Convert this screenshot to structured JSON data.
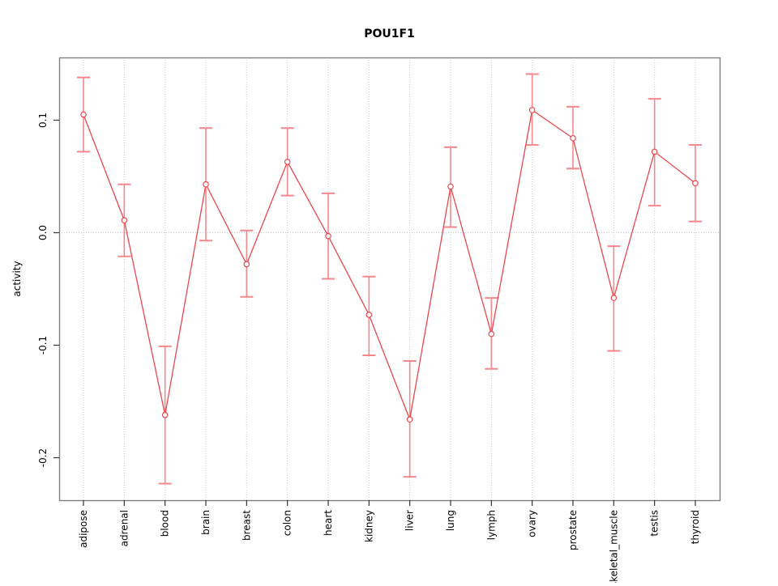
{
  "title": "POU1F1",
  "colors": {
    "series_line": "#e9474e",
    "error_bar": "#f5878c",
    "marker_stroke": "#e9474e",
    "marker_fill": "#ffffff",
    "frame": "#7f7f7f",
    "gridline": "#c9c9c9",
    "tick": "#333333",
    "text": "#000000",
    "background": "#ffffff"
  },
  "chart_data": {
    "type": "line",
    "title": "POU1F1",
    "xlabel": "",
    "ylabel": "activity",
    "legend_position": "none",
    "grid": "dotted vertical gridline per category; dotted horizontal line at y=0",
    "marker": "open-circle",
    "error_bars": true,
    "categories": [
      "adipose",
      "adrenal",
      "blood",
      "brain",
      "breast",
      "colon",
      "heart",
      "kidney",
      "liver",
      "lung",
      "lymph",
      "ovary",
      "prostate",
      "skeletal_muscle",
      "testis",
      "thyroid"
    ],
    "series": [
      {
        "name": "activity",
        "values": [
          0.105,
          0.011,
          -0.162,
          0.043,
          -0.028,
          0.063,
          -0.003,
          -0.073,
          -0.166,
          0.041,
          -0.09,
          0.109,
          0.084,
          -0.058,
          0.072,
          0.044
        ],
        "error_low": [
          0.072,
          -0.021,
          -0.223,
          -0.007,
          -0.057,
          0.033,
          -0.041,
          -0.109,
          -0.217,
          0.005,
          -0.121,
          0.078,
          0.057,
          -0.105,
          0.024,
          0.01
        ],
        "error_high": [
          0.138,
          0.043,
          -0.101,
          0.093,
          0.002,
          0.093,
          0.035,
          -0.039,
          -0.114,
          0.076,
          -0.058,
          0.141,
          0.112,
          -0.012,
          0.119,
          0.078
        ]
      }
    ],
    "yticks": [
      0.1,
      0.0,
      -0.1,
      -0.2
    ],
    "ytick_labels": [
      "0.1",
      "0.0",
      "-0.1",
      "-0.2"
    ],
    "ylim": [
      -0.238,
      0.156
    ]
  }
}
